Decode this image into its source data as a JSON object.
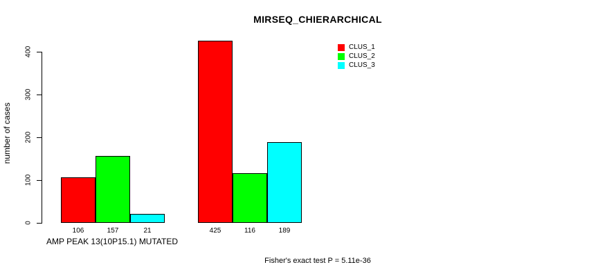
{
  "title": "MIRSEQ_CHIERARCHICAL",
  "footer_annotation": "Fisher's exact test P = 5.11e-36",
  "y_axis": {
    "label": "number of cases",
    "tick_labels": [
      "0",
      "100",
      "200",
      "300",
      "400"
    ],
    "tick_values": [
      0,
      100,
      200,
      300,
      400
    ]
  },
  "x_axis": {
    "group_label": "AMP PEAK 13(10P15.1) MUTATED"
  },
  "legend": {
    "items": [
      {
        "label": "CLUS_1",
        "color": "#ff0000"
      },
      {
        "label": "CLUS_2",
        "color": "#00ff00"
      },
      {
        "label": "CLUS_3",
        "color": "#00ffff"
      }
    ]
  },
  "chart_data": {
    "type": "bar",
    "title": "MIRSEQ_CHIERARCHICAL",
    "xlabel": "",
    "ylabel": "number of cases",
    "ylim": [
      0,
      440
    ],
    "yticks": [
      0,
      100,
      200,
      300,
      400
    ],
    "categories": [
      "AMP PEAK 13(10P15.1) MUTATED",
      ""
    ],
    "series": [
      {
        "name": "CLUS_1",
        "color": "#ff0000",
        "values": [
          106,
          425
        ]
      },
      {
        "name": "CLUS_2",
        "color": "#00ff00",
        "values": [
          157,
          116
        ]
      },
      {
        "name": "CLUS_3",
        "color": "#00ffff",
        "values": [
          21,
          189
        ]
      }
    ],
    "bar_value_labels": [
      [
        106,
        157,
        21
      ],
      [
        425,
        116,
        189
      ]
    ],
    "legend_position": "top-right",
    "grid": false,
    "annotation": "Fisher's exact test P = 5.11e-36"
  }
}
